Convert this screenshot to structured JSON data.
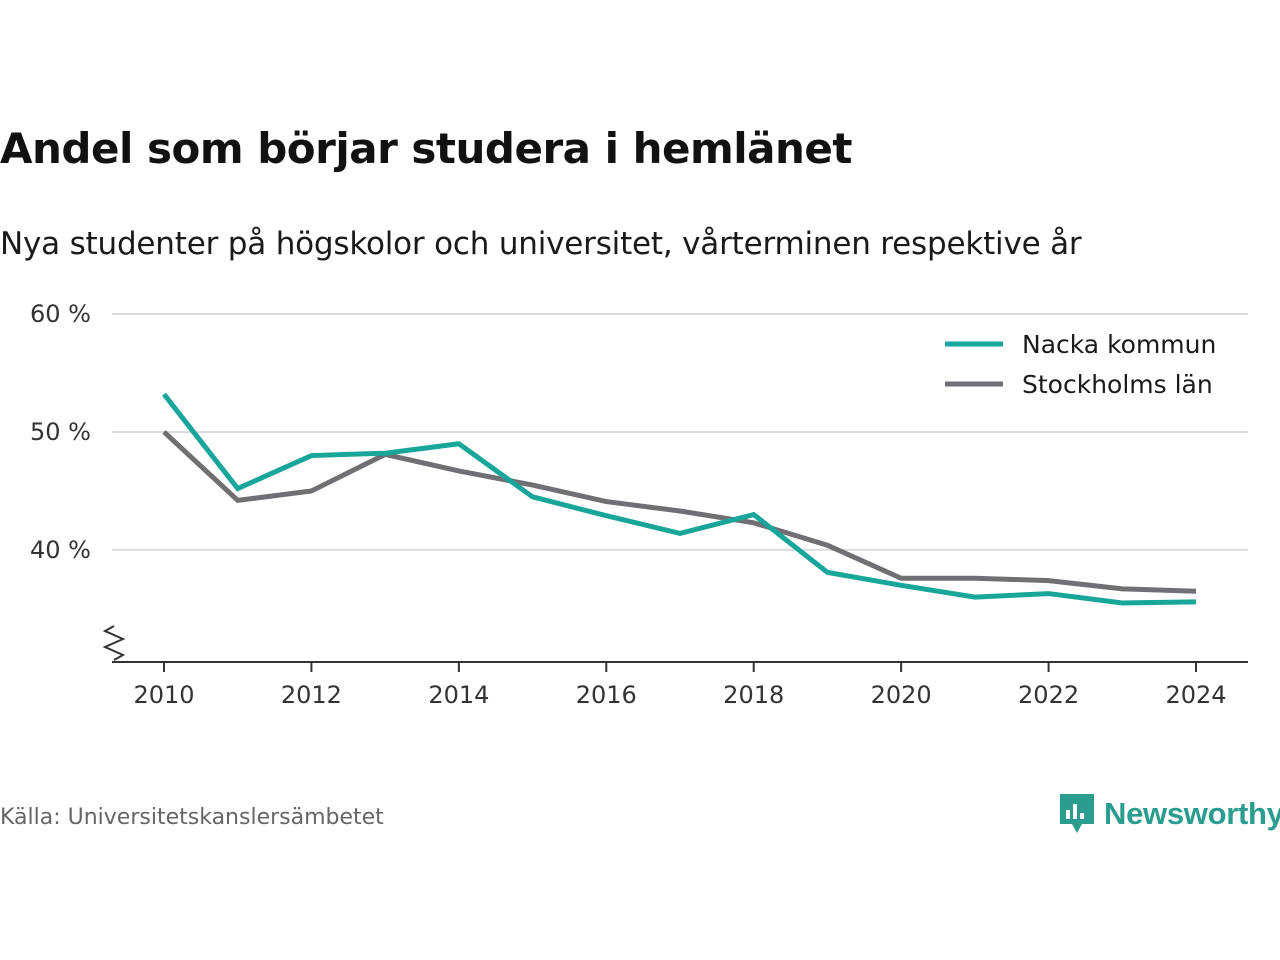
{
  "title": "Andel som börjar studera i hemlänet",
  "subtitle": "Nya studenter på högskolor och universitet, vårterminen respektive år",
  "source": "Källa: Universitetskanslersämbetet",
  "brand": {
    "name": "Newsworthy",
    "icon": "newsworthy-logo-icon",
    "color": "#2a9d8f"
  },
  "chart_data": {
    "type": "line",
    "title": "Andel som börjar studera i hemlänet",
    "subtitle": "Nya studenter på högskolor och universitet, vårterminen respektive år",
    "xlabel": "",
    "ylabel": "",
    "x": [
      2010,
      2011,
      2012,
      2013,
      2014,
      2015,
      2016,
      2017,
      2018,
      2019,
      2020,
      2021,
      2022,
      2023,
      2024
    ],
    "xticks": [
      2010,
      2012,
      2014,
      2016,
      2018,
      2020,
      2022,
      2024
    ],
    "xtick_labels": [
      "2010",
      "2012",
      "2014",
      "2016",
      "2018",
      "2020",
      "2022",
      "2024"
    ],
    "yticks": [
      40,
      50,
      60
    ],
    "ytick_labels": [
      "40 %",
      "50 %",
      "60 %"
    ],
    "ylim": [
      30.5,
      60
    ],
    "y_axis_break": true,
    "grid": true,
    "legend_position": "top-right",
    "series": [
      {
        "name": "Nacka kommun",
        "color": "#18a59a",
        "values": [
          53.2,
          45.2,
          48.0,
          48.2,
          49.0,
          44.5,
          42.9,
          41.4,
          43.0,
          38.1,
          37.0,
          36.0,
          36.3,
          35.5,
          35.6
        ]
      },
      {
        "name": "Stockholms län",
        "color": "#707074",
        "values": [
          50.0,
          44.2,
          45.0,
          48.1,
          46.7,
          45.5,
          44.1,
          43.3,
          42.3,
          40.4,
          37.6,
          37.6,
          37.4,
          36.7,
          36.5
        ]
      }
    ]
  }
}
